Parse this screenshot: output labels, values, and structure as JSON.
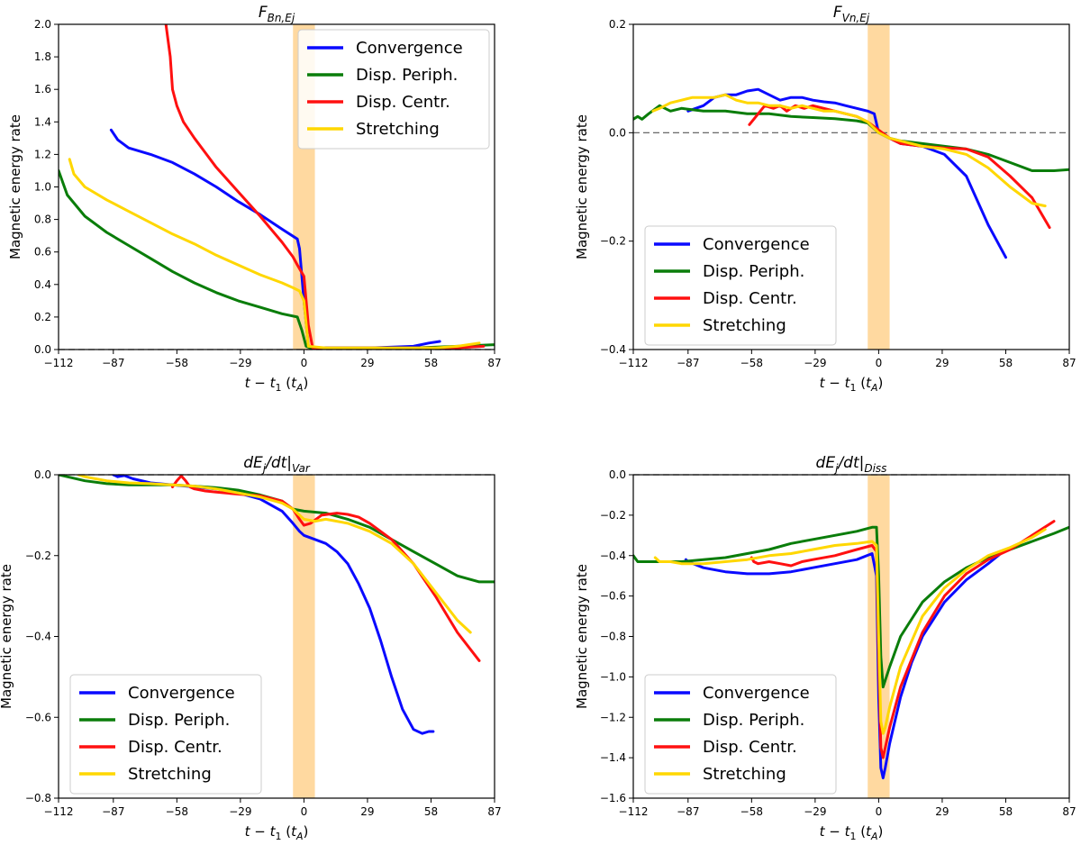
{
  "colors": {
    "Convergence": "#0a0aff",
    "Disp. Periph.": "#0a7d0a",
    "Disp. Centr.": "#ff1010",
    "Stretching": "#ffd700",
    "band": "#ffd9a0"
  },
  "band_x": [
    -5,
    5
  ],
  "chart_data": [
    {
      "type": "line",
      "title": "F_{Bn,Ej}",
      "title_main": "F",
      "title_sub": "Bn,Ej",
      "xlabel": "t − t₁ (t_A)",
      "ylabel": "Magnetic energy rate",
      "xlim": [
        -112,
        87
      ],
      "ylim": [
        0,
        2
      ],
      "xticks": [
        -112,
        -87,
        -58,
        -29,
        0,
        29,
        58,
        87
      ],
      "yticks": [
        0,
        0.2,
        0.4,
        0.6,
        0.8,
        1.0,
        1.2,
        1.4,
        1.6,
        1.8,
        2.0
      ],
      "ytick_labels": [
        "0.0",
        "0.2",
        "0.4",
        "0.6",
        "0.8",
        "1.0",
        "1.2",
        "1.4",
        "1.6",
        "1.8",
        "2.0"
      ],
      "zero_line": true,
      "legend_position": "top-right",
      "series": [
        {
          "name": "Convergence",
          "x": [
            -88,
            -85,
            -80,
            -70,
            -60,
            -50,
            -40,
            -30,
            -20,
            -10,
            -3,
            -2,
            0,
            2,
            5,
            10,
            30,
            50,
            57,
            62
          ],
          "y": [
            1.35,
            1.29,
            1.24,
            1.2,
            1.15,
            1.08,
            1.0,
            0.91,
            0.83,
            0.74,
            0.68,
            0.62,
            0.3,
            0.02,
            0.01,
            0.01,
            0.01,
            0.02,
            0.04,
            0.05
          ]
        },
        {
          "name": "Disp. Periph.",
          "x": [
            -112,
            -108,
            -100,
            -90,
            -80,
            -70,
            -60,
            -50,
            -40,
            -30,
            -20,
            -10,
            -3,
            -1,
            1,
            3,
            10,
            30,
            50,
            70,
            87
          ],
          "y": [
            1.1,
            0.95,
            0.82,
            0.72,
            0.64,
            0.56,
            0.48,
            0.41,
            0.35,
            0.3,
            0.26,
            0.22,
            0.2,
            0.12,
            0.02,
            0.01,
            0.01,
            0.01,
            0.01,
            0.02,
            0.03
          ]
        },
        {
          "name": "Disp. Centr.",
          "x": [
            -63,
            -61,
            -60,
            -58,
            -55,
            -50,
            -45,
            -40,
            -30,
            -20,
            -10,
            -5,
            -3,
            0,
            2,
            4,
            20,
            60,
            70,
            82
          ],
          "y": [
            2.0,
            1.8,
            1.6,
            1.5,
            1.4,
            1.3,
            1.21,
            1.12,
            0.97,
            0.82,
            0.66,
            0.57,
            0.52,
            0.45,
            0.15,
            0.01,
            0.01,
            0.01,
            0.01,
            0.02
          ]
        },
        {
          "name": "Stretching",
          "x": [
            -107,
            -105,
            -100,
            -90,
            -80,
            -70,
            -60,
            -50,
            -40,
            -30,
            -20,
            -10,
            -5,
            -2,
            0,
            2,
            10,
            60,
            70,
            80
          ],
          "y": [
            1.17,
            1.08,
            1.0,
            0.92,
            0.85,
            0.78,
            0.71,
            0.65,
            0.58,
            0.52,
            0.46,
            0.41,
            0.38,
            0.36,
            0.3,
            0.02,
            0.01,
            0.01,
            0.02,
            0.04
          ]
        }
      ]
    },
    {
      "type": "line",
      "title": "F_{Vn,Ej}",
      "title_main": "F",
      "title_sub": "Vn,Ej",
      "xlabel": "t − t₁ (t_A)",
      "ylabel": "Magnetic energy rate",
      "xlim": [
        -112,
        87
      ],
      "ylim": [
        -0.4,
        0.2
      ],
      "xticks": [
        -112,
        -87,
        -58,
        -29,
        0,
        29,
        58,
        87
      ],
      "yticks": [
        -0.4,
        -0.2,
        0.0,
        0.2
      ],
      "ytick_labels": [
        "−0.4",
        "−0.2",
        "0.0",
        "0.2"
      ],
      "zero_line": true,
      "legend_position": "bottom-left",
      "series": [
        {
          "name": "Convergence",
          "x": [
            -87,
            -80,
            -75,
            -70,
            -65,
            -60,
            -55,
            -50,
            -45,
            -40,
            -35,
            -30,
            -25,
            -20,
            -15,
            -10,
            -5,
            -2,
            0,
            5,
            10,
            20,
            30,
            40,
            50,
            58
          ],
          "y": [
            0.04,
            0.05,
            0.065,
            0.07,
            0.07,
            0.077,
            0.08,
            0.07,
            0.06,
            0.065,
            0.065,
            0.06,
            0.057,
            0.055,
            0.05,
            0.045,
            0.04,
            0.035,
            0.0,
            -0.01,
            -0.02,
            -0.025,
            -0.04,
            -0.08,
            -0.17,
            -0.23
          ]
        },
        {
          "name": "Disp. Periph.",
          "x": [
            -112,
            -110,
            -108,
            -105,
            -100,
            -95,
            -90,
            -80,
            -70,
            -60,
            -50,
            -40,
            -30,
            -20,
            -10,
            -5,
            0,
            5,
            10,
            20,
            30,
            40,
            50,
            60,
            70,
            80,
            87
          ],
          "y": [
            0.025,
            0.03,
            0.025,
            0.035,
            0.05,
            0.04,
            0.045,
            0.04,
            0.04,
            0.035,
            0.035,
            0.03,
            0.028,
            0.026,
            0.022,
            0.018,
            0.0,
            -0.01,
            -0.015,
            -0.02,
            -0.025,
            -0.03,
            -0.04,
            -0.055,
            -0.07,
            -0.07,
            -0.068
          ]
        },
        {
          "name": "Disp. Centr.",
          "x": [
            -59,
            -57,
            -55,
            -52,
            -48,
            -45,
            -42,
            -38,
            -34,
            -30,
            -25,
            -20,
            -15,
            -10,
            -5,
            0,
            5,
            10,
            20,
            30,
            40,
            50,
            60,
            70,
            78
          ],
          "y": [
            0.015,
            0.025,
            0.035,
            0.05,
            0.045,
            0.05,
            0.04,
            0.05,
            0.045,
            0.05,
            0.045,
            0.04,
            0.035,
            0.03,
            0.02,
            0.005,
            -0.01,
            -0.02,
            -0.025,
            -0.028,
            -0.03,
            -0.045,
            -0.08,
            -0.12,
            -0.175
          ]
        },
        {
          "name": "Stretching",
          "x": [
            -103,
            -100,
            -95,
            -90,
            -85,
            -80,
            -75,
            -70,
            -65,
            -60,
            -55,
            -50,
            -45,
            -40,
            -35,
            -30,
            -25,
            -20,
            -15,
            -10,
            -5,
            0,
            5,
            10,
            20,
            30,
            40,
            50,
            60,
            70,
            76
          ],
          "y": [
            0.04,
            0.045,
            0.055,
            0.06,
            0.065,
            0.065,
            0.065,
            0.07,
            0.06,
            0.055,
            0.055,
            0.05,
            0.05,
            0.045,
            0.05,
            0.045,
            0.04,
            0.04,
            0.035,
            0.03,
            0.02,
            0.0,
            -0.01,
            -0.015,
            -0.025,
            -0.03,
            -0.04,
            -0.065,
            -0.1,
            -0.13,
            -0.135
          ]
        }
      ]
    },
    {
      "type": "line",
      "title": "dE_j/dt|_{Var}",
      "title_main": "dE",
      "title_sub1": "j",
      "title_mid": "/dt|",
      "title_sub": "Var",
      "xlabel": "t − t₁ (t_A)",
      "ylabel": "Magnetic energy rate",
      "xlim": [
        -112,
        87
      ],
      "ylim": [
        -0.8,
        0
      ],
      "xticks": [
        -112,
        -87,
        -58,
        -29,
        0,
        29,
        58,
        87
      ],
      "yticks": [
        -0.8,
        -0.6,
        -0.4,
        -0.2,
        0.0
      ],
      "ytick_labels": [
        "−0.8",
        "−0.6",
        "−0.4",
        "−0.2",
        "0.0"
      ],
      "zero_line": true,
      "legend_position": "bottom-left",
      "series": [
        {
          "name": "Convergence",
          "x": [
            -87,
            -85,
            -82,
            -78,
            -70,
            -60,
            -50,
            -40,
            -30,
            -20,
            -10,
            -5,
            -2,
            0,
            5,
            10,
            15,
            20,
            25,
            30,
            35,
            40,
            45,
            50,
            54,
            57,
            59
          ],
          "y": [
            0.0,
            -0.005,
            -0.002,
            -0.01,
            -0.02,
            -0.025,
            -0.03,
            -0.035,
            -0.045,
            -0.06,
            -0.09,
            -0.12,
            -0.14,
            -0.15,
            -0.16,
            -0.17,
            -0.19,
            -0.22,
            -0.27,
            -0.33,
            -0.41,
            -0.5,
            -0.58,
            -0.63,
            -0.64,
            -0.635,
            -0.635
          ]
        },
        {
          "name": "Disp. Periph.",
          "x": [
            -112,
            -108,
            -100,
            -90,
            -80,
            -70,
            -60,
            -50,
            -40,
            -30,
            -20,
            -10,
            -5,
            0,
            10,
            20,
            30,
            40,
            50,
            60,
            70,
            80,
            87
          ],
          "y": [
            0.0,
            -0.005,
            -0.015,
            -0.022,
            -0.025,
            -0.025,
            -0.025,
            -0.028,
            -0.032,
            -0.038,
            -0.05,
            -0.065,
            -0.085,
            -0.09,
            -0.095,
            -0.11,
            -0.13,
            -0.16,
            -0.19,
            -0.22,
            -0.25,
            -0.265,
            -0.265
          ]
        },
        {
          "name": "Disp. Centr.",
          "x": [
            -60,
            -58,
            -56,
            -54,
            -52,
            -50,
            -45,
            -40,
            -30,
            -20,
            -10,
            -5,
            -2,
            0,
            3,
            8,
            15,
            20,
            25,
            30,
            40,
            50,
            60,
            70,
            80
          ],
          "y": [
            -0.03,
            -0.015,
            -0.003,
            -0.015,
            -0.03,
            -0.035,
            -0.04,
            -0.043,
            -0.048,
            -0.052,
            -0.065,
            -0.085,
            -0.11,
            -0.125,
            -0.12,
            -0.1,
            -0.095,
            -0.098,
            -0.105,
            -0.12,
            -0.16,
            -0.22,
            -0.3,
            -0.39,
            -0.46
          ]
        },
        {
          "name": "Stretching",
          "x": [
            -103,
            -100,
            -95,
            -90,
            -80,
            -70,
            -60,
            -50,
            -40,
            -30,
            -20,
            -10,
            -5,
            -2,
            0,
            5,
            10,
            20,
            30,
            40,
            50,
            60,
            70,
            76
          ],
          "y": [
            0.0,
            -0.005,
            -0.01,
            -0.015,
            -0.02,
            -0.022,
            -0.025,
            -0.028,
            -0.035,
            -0.045,
            -0.055,
            -0.07,
            -0.085,
            -0.1,
            -0.11,
            -0.115,
            -0.11,
            -0.12,
            -0.14,
            -0.17,
            -0.22,
            -0.29,
            -0.36,
            -0.39
          ]
        }
      ]
    },
    {
      "type": "line",
      "title": "dE_j/dt|_{Diss}",
      "title_main": "dE",
      "title_sub1": "j",
      "title_mid": "/dt|",
      "title_sub": "Diss",
      "xlabel": "t − t₁ (t_A)",
      "ylabel": "Magnetic energy rate",
      "xlim": [
        -112,
        87
      ],
      "ylim": [
        -1.6,
        0
      ],
      "xticks": [
        -112,
        -87,
        -58,
        -29,
        0,
        29,
        58,
        87
      ],
      "yticks": [
        -1.6,
        -1.4,
        -1.2,
        -1.0,
        -0.8,
        -0.6,
        -0.4,
        -0.2,
        0.0
      ],
      "ytick_labels": [
        "−1.6",
        "−1.4",
        "−1.2",
        "−1.0",
        "−0.8",
        "−0.6",
        "−0.4",
        "−0.2",
        "0.0"
      ],
      "zero_line": true,
      "legend_position": "bottom-left",
      "series": [
        {
          "name": "Convergence",
          "x": [
            -88,
            -87,
            -80,
            -70,
            -60,
            -50,
            -40,
            -30,
            -20,
            -10,
            -3,
            -1,
            0,
            1,
            2,
            3,
            5,
            10,
            15,
            20,
            30,
            40,
            50,
            58
          ],
          "y": [
            -0.42,
            -0.43,
            -0.46,
            -0.48,
            -0.49,
            -0.49,
            -0.48,
            -0.46,
            -0.44,
            -0.42,
            -0.39,
            -0.5,
            -1.1,
            -1.45,
            -1.5,
            -1.45,
            -1.33,
            -1.1,
            -0.93,
            -0.8,
            -0.63,
            -0.52,
            -0.44,
            -0.37
          ]
        },
        {
          "name": "Disp. Periph.",
          "x": [
            -112,
            -110,
            -108,
            -100,
            -90,
            -80,
            -70,
            -60,
            -50,
            -40,
            -30,
            -20,
            -10,
            -3,
            -1,
            0,
            1,
            2,
            5,
            10,
            20,
            30,
            40,
            50,
            60,
            70,
            80,
            87
          ],
          "y": [
            -0.4,
            -0.43,
            -0.43,
            -0.43,
            -0.43,
            -0.42,
            -0.41,
            -0.39,
            -0.37,
            -0.34,
            -0.32,
            -0.3,
            -0.28,
            -0.26,
            -0.26,
            -0.5,
            -0.9,
            -1.05,
            -0.95,
            -0.8,
            -0.63,
            -0.53,
            -0.46,
            -0.41,
            -0.37,
            -0.33,
            -0.29,
            -0.26
          ]
        },
        {
          "name": "Disp. Centr.",
          "x": [
            -58,
            -57,
            -55,
            -50,
            -45,
            -40,
            -35,
            -30,
            -20,
            -10,
            -3,
            -1,
            0,
            1,
            2,
            3,
            5,
            10,
            20,
            30,
            40,
            50,
            60,
            70,
            80
          ],
          "y": [
            -0.41,
            -0.43,
            -0.44,
            -0.43,
            -0.44,
            -0.45,
            -0.43,
            -0.42,
            -0.4,
            -0.37,
            -0.35,
            -0.38,
            -0.9,
            -1.35,
            -1.4,
            -1.35,
            -1.25,
            -1.05,
            -0.78,
            -0.6,
            -0.49,
            -0.42,
            -0.37,
            -0.3,
            -0.23
          ]
        },
        {
          "name": "Stretching",
          "x": [
            -102,
            -100,
            -95,
            -90,
            -80,
            -70,
            -60,
            -50,
            -40,
            -30,
            -20,
            -10,
            -3,
            -1,
            0,
            1,
            2,
            3,
            5,
            10,
            20,
            30,
            40,
            50,
            60,
            70,
            76
          ],
          "y": [
            -0.41,
            -0.43,
            -0.43,
            -0.44,
            -0.44,
            -0.43,
            -0.42,
            -0.4,
            -0.39,
            -0.37,
            -0.35,
            -0.34,
            -0.33,
            -0.35,
            -0.8,
            -1.22,
            -1.28,
            -1.25,
            -1.15,
            -0.95,
            -0.7,
            -0.56,
            -0.47,
            -0.4,
            -0.36,
            -0.31,
            -0.27
          ]
        }
      ]
    }
  ]
}
